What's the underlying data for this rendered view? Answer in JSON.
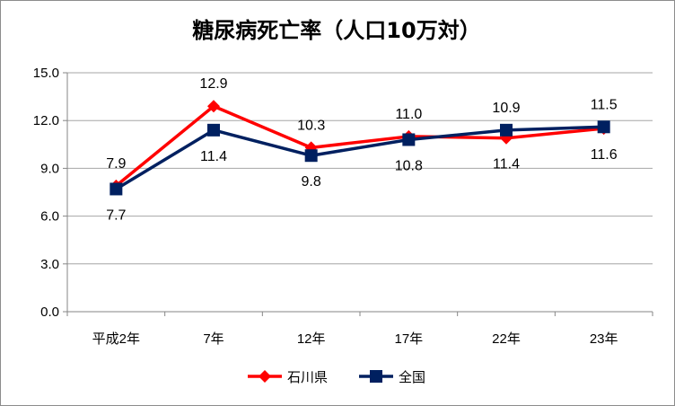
{
  "chart_data": {
    "type": "line",
    "title": "糖尿病死亡率（人口10万対）",
    "categories": [
      "平成2年",
      "7年",
      "12年",
      "17年",
      "22年",
      "23年"
    ],
    "ylim": [
      0,
      15
    ],
    "yticks": [
      "0.0",
      "3.0",
      "6.0",
      "9.0",
      "12.0",
      "15.0"
    ],
    "grid": true,
    "legend_position": "bottom",
    "series": [
      {
        "name": "石川県",
        "color": "#ff0000",
        "marker": "diamond",
        "values": [
          7.9,
          12.9,
          10.3,
          11.0,
          10.9,
          11.5
        ]
      },
      {
        "name": "全国",
        "color": "#002060",
        "marker": "square",
        "values": [
          7.7,
          11.4,
          9.8,
          10.8,
          11.4,
          11.6
        ]
      }
    ]
  }
}
